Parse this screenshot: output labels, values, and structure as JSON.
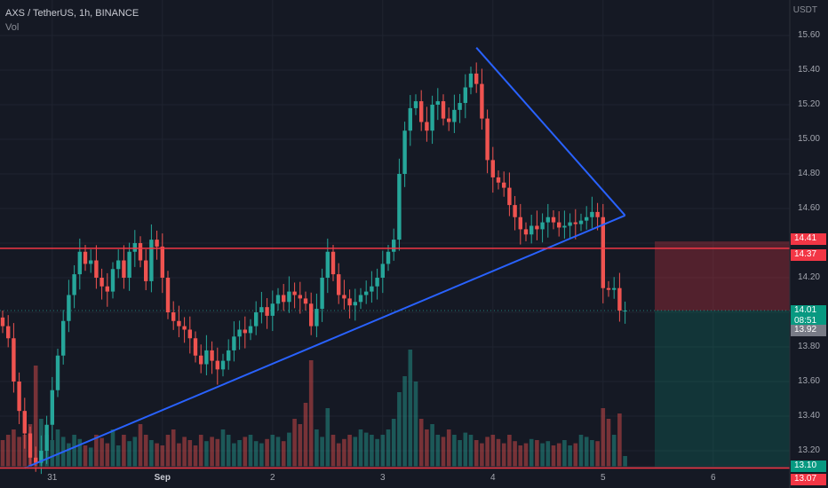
{
  "header": {
    "symbol_line": "AXS / TetherUS, 1h, BINANCE",
    "indicator": "Vol",
    "currency": "USDT"
  },
  "chart_data": {
    "type": "candlestick",
    "symbol": "AXS / TetherUS",
    "interval": "1h",
    "exchange": "BINANCE",
    "y_range": [
      12.88,
      15.68
    ],
    "y_ticks": [
      "15.60",
      "15.40",
      "15.20",
      "15.00",
      "14.80",
      "14.60",
      "14.40",
      "14.20",
      "14.00",
      "13.80",
      "13.60",
      "13.40",
      "13.20"
    ],
    "x_labels": [
      {
        "label": "31",
        "bold": false,
        "bar": 9
      },
      {
        "label": "Sep",
        "bold": true,
        "bar": 29
      },
      {
        "label": "2",
        "bold": false,
        "bar": 49
      },
      {
        "label": "3",
        "bold": false,
        "bar": 69
      },
      {
        "label": "4",
        "bold": false,
        "bar": 89
      },
      {
        "label": "5",
        "bold": false,
        "bar": 109
      },
      {
        "label": "6",
        "bold": false,
        "bar": 129
      }
    ],
    "closes": [
      13.92,
      13.85,
      13.6,
      13.43,
      13.3,
      13.16,
      13.13,
      13.2,
      13.35,
      13.55,
      13.75,
      13.95,
      14.1,
      14.22,
      14.35,
      14.28,
      14.3,
      14.2,
      14.15,
      14.12,
      14.25,
      14.3,
      14.2,
      14.35,
      14.4,
      14.3,
      14.18,
      14.42,
      14.38,
      14.2,
      14.0,
      13.95,
      13.92,
      13.9,
      13.85,
      13.75,
      13.7,
      13.78,
      13.72,
      13.67,
      13.72,
      13.78,
      13.86,
      13.9,
      13.88,
      13.92,
      14.0,
      14.03,
      13.98,
      14.05,
      14.1,
      14.06,
      14.12,
      14.1,
      14.08,
      14.05,
      13.92,
      14.02,
      14.2,
      14.35,
      14.22,
      14.1,
      14.08,
      14.04,
      14.06,
      14.1,
      14.12,
      14.15,
      14.2,
      14.28,
      14.35,
      14.42,
      14.8,
      15.05,
      15.18,
      15.22,
      15.1,
      15.05,
      15.2,
      15.22,
      15.12,
      15.1,
      15.17,
      15.21,
      15.3,
      15.38,
      15.32,
      15.12,
      14.88,
      14.78,
      14.75,
      14.72,
      14.62,
      14.55,
      14.48,
      14.45,
      14.5,
      14.48,
      14.52,
      14.55,
      14.52,
      14.49,
      14.5,
      14.52,
      14.51,
      14.53,
      14.55,
      14.58,
      14.55,
      14.14,
      14.13,
      14.14,
      14.01,
      14.01
    ],
    "volume_relative": [
      0.25,
      0.3,
      0.35,
      0.28,
      0.3,
      0.4,
      0.95,
      0.45,
      0.3,
      0.25,
      0.35,
      0.28,
      0.22,
      0.3,
      0.26,
      0.2,
      0.18,
      0.3,
      0.27,
      0.22,
      0.35,
      0.2,
      0.3,
      0.24,
      0.28,
      0.4,
      0.3,
      0.25,
      0.22,
      0.2,
      0.3,
      0.35,
      0.22,
      0.28,
      0.25,
      0.2,
      0.3,
      0.24,
      0.28,
      0.26,
      0.35,
      0.3,
      0.22,
      0.25,
      0.28,
      0.3,
      0.24,
      0.22,
      0.26,
      0.3,
      0.28,
      0.24,
      0.32,
      0.45,
      0.4,
      0.6,
      1.0,
      0.35,
      0.28,
      0.55,
      0.3,
      0.22,
      0.26,
      0.3,
      0.28,
      0.35,
      0.32,
      0.3,
      0.26,
      0.3,
      0.35,
      0.45,
      0.7,
      0.85,
      1.1,
      0.8,
      0.45,
      0.35,
      0.4,
      0.3,
      0.28,
      0.35,
      0.3,
      0.25,
      0.32,
      0.3,
      0.25,
      0.22,
      0.28,
      0.3,
      0.26,
      0.22,
      0.3,
      0.24,
      0.2,
      0.22,
      0.26,
      0.25,
      0.22,
      0.24,
      0.2,
      0.22,
      0.25,
      0.2,
      0.22,
      0.3,
      0.28,
      0.25,
      0.24,
      0.55,
      0.45,
      0.3,
      0.5,
      0.1
    ],
    "lines": {
      "support_trendline": [
        {
          "bar": 4,
          "price": 13.1
        },
        {
          "bar": 113,
          "price": 14.56
        }
      ],
      "triangle_upper": [
        {
          "bar": 86,
          "price": 15.53
        },
        {
          "bar": 113,
          "price": 14.56
        }
      ],
      "horizontal_resistance": 14.37,
      "horizontal_support": 13.1
    },
    "position": {
      "entry": 14.01,
      "stop": 14.41,
      "target": 13.1
    },
    "price_labels": [
      {
        "text": "14.41",
        "price": 14.41,
        "style": "red"
      },
      {
        "text": "14.37",
        "price": 14.37,
        "style": "red"
      },
      {
        "text": "14.01",
        "price": 14.01,
        "style": "current",
        "countdown": "08:51"
      },
      {
        "text": "13.92",
        "price": 13.92,
        "style": "gray"
      },
      {
        "text": "13.10",
        "price": 13.1,
        "style": "green"
      },
      {
        "text": "13.07",
        "price": 13.07,
        "style": "red"
      }
    ],
    "colors": {
      "up": "#26a69a",
      "down": "#ef5350",
      "trend": "#2962ff",
      "level": "#f23645",
      "stop_zone": "#f23645",
      "target_zone": "#089981"
    }
  }
}
